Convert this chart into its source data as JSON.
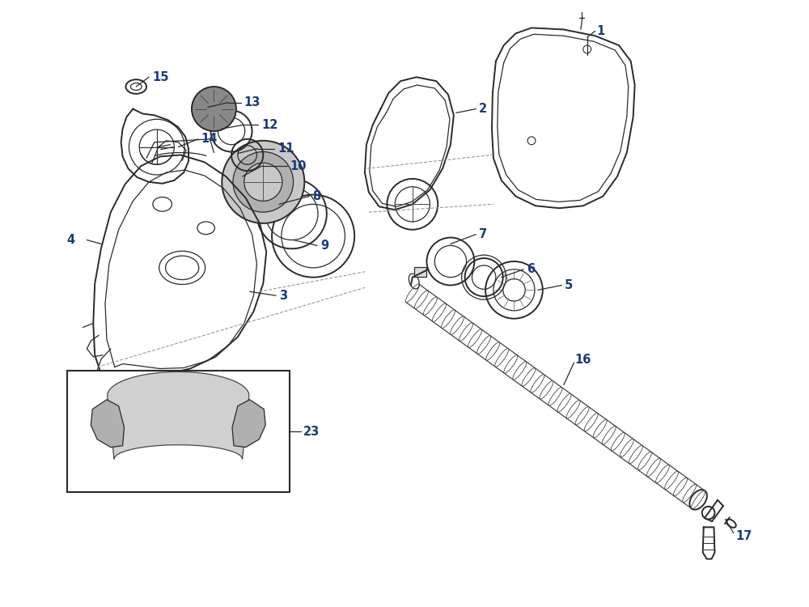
{
  "background_color": "#ffffff",
  "line_color": "#2a2a2a",
  "label_color": "#1a3a7a",
  "label_fontsize": 10.5
}
